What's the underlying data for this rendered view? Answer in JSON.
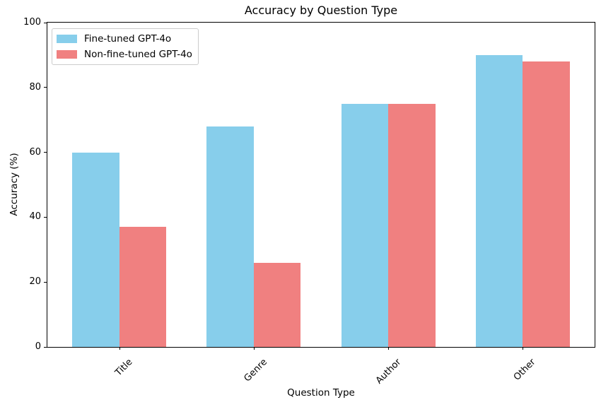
{
  "chart_data": {
    "type": "bar",
    "title": "Accuracy by Question Type",
    "xlabel": "Question Type",
    "ylabel": "Accuracy (%)",
    "categories": [
      "Title",
      "Genre",
      "Author",
      "Other"
    ],
    "series": [
      {
        "name": "Fine-tuned GPT-4o",
        "color": "#87CEEB",
        "values": [
          60,
          68,
          75,
          90
        ]
      },
      {
        "name": "Non-fine-tuned GPT-4o",
        "color": "#F08080",
        "values": [
          37,
          26,
          75,
          88
        ]
      }
    ],
    "ylim": [
      0,
      100
    ],
    "yticks": [
      0,
      20,
      40,
      60,
      80,
      100
    ],
    "grid": false,
    "legend_position": "upper left",
    "x_tick_rotation": 45,
    "bar_group_width": 0.35
  }
}
